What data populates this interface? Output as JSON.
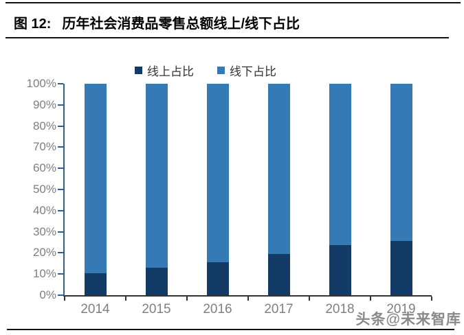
{
  "figure": {
    "title_prefix": "图 12:",
    "title_text": "历年社会消费品零售总额线上/线下占比"
  },
  "watermark": "头条@未来智库",
  "colors": {
    "online_bar": "#143a66",
    "offline_bar": "#3579b5",
    "y_axis": "#2e5f8f",
    "x_axis": "#333333",
    "axis_label": "#7f7f7f",
    "rule": "#111111",
    "title": "#000000"
  },
  "chart_data": {
    "type": "bar",
    "stacked": true,
    "stacked_total": 100,
    "title": "图 12: 历年社会消费品零售总额线上/线下占比",
    "categories": [
      "2014",
      "2015",
      "2016",
      "2017",
      "2018",
      "2019"
    ],
    "series": [
      {
        "name": "线上占比",
        "color": "#143a66",
        "values": [
          10.3,
          12.9,
          15.5,
          19.6,
          23.6,
          25.8
        ]
      },
      {
        "name": "线下占比",
        "color": "#3579b5",
        "values": [
          89.7,
          87.1,
          84.5,
          80.4,
          76.4,
          74.2
        ]
      }
    ],
    "xlabel": "",
    "ylabel": "",
    "ylim": [
      0,
      100
    ],
    "y_ticks": [
      "0%",
      "10%",
      "20%",
      "30%",
      "40%",
      "50%",
      "60%",
      "70%",
      "80%",
      "90%",
      "100%"
    ],
    "legend_position": "top",
    "grid": false
  }
}
